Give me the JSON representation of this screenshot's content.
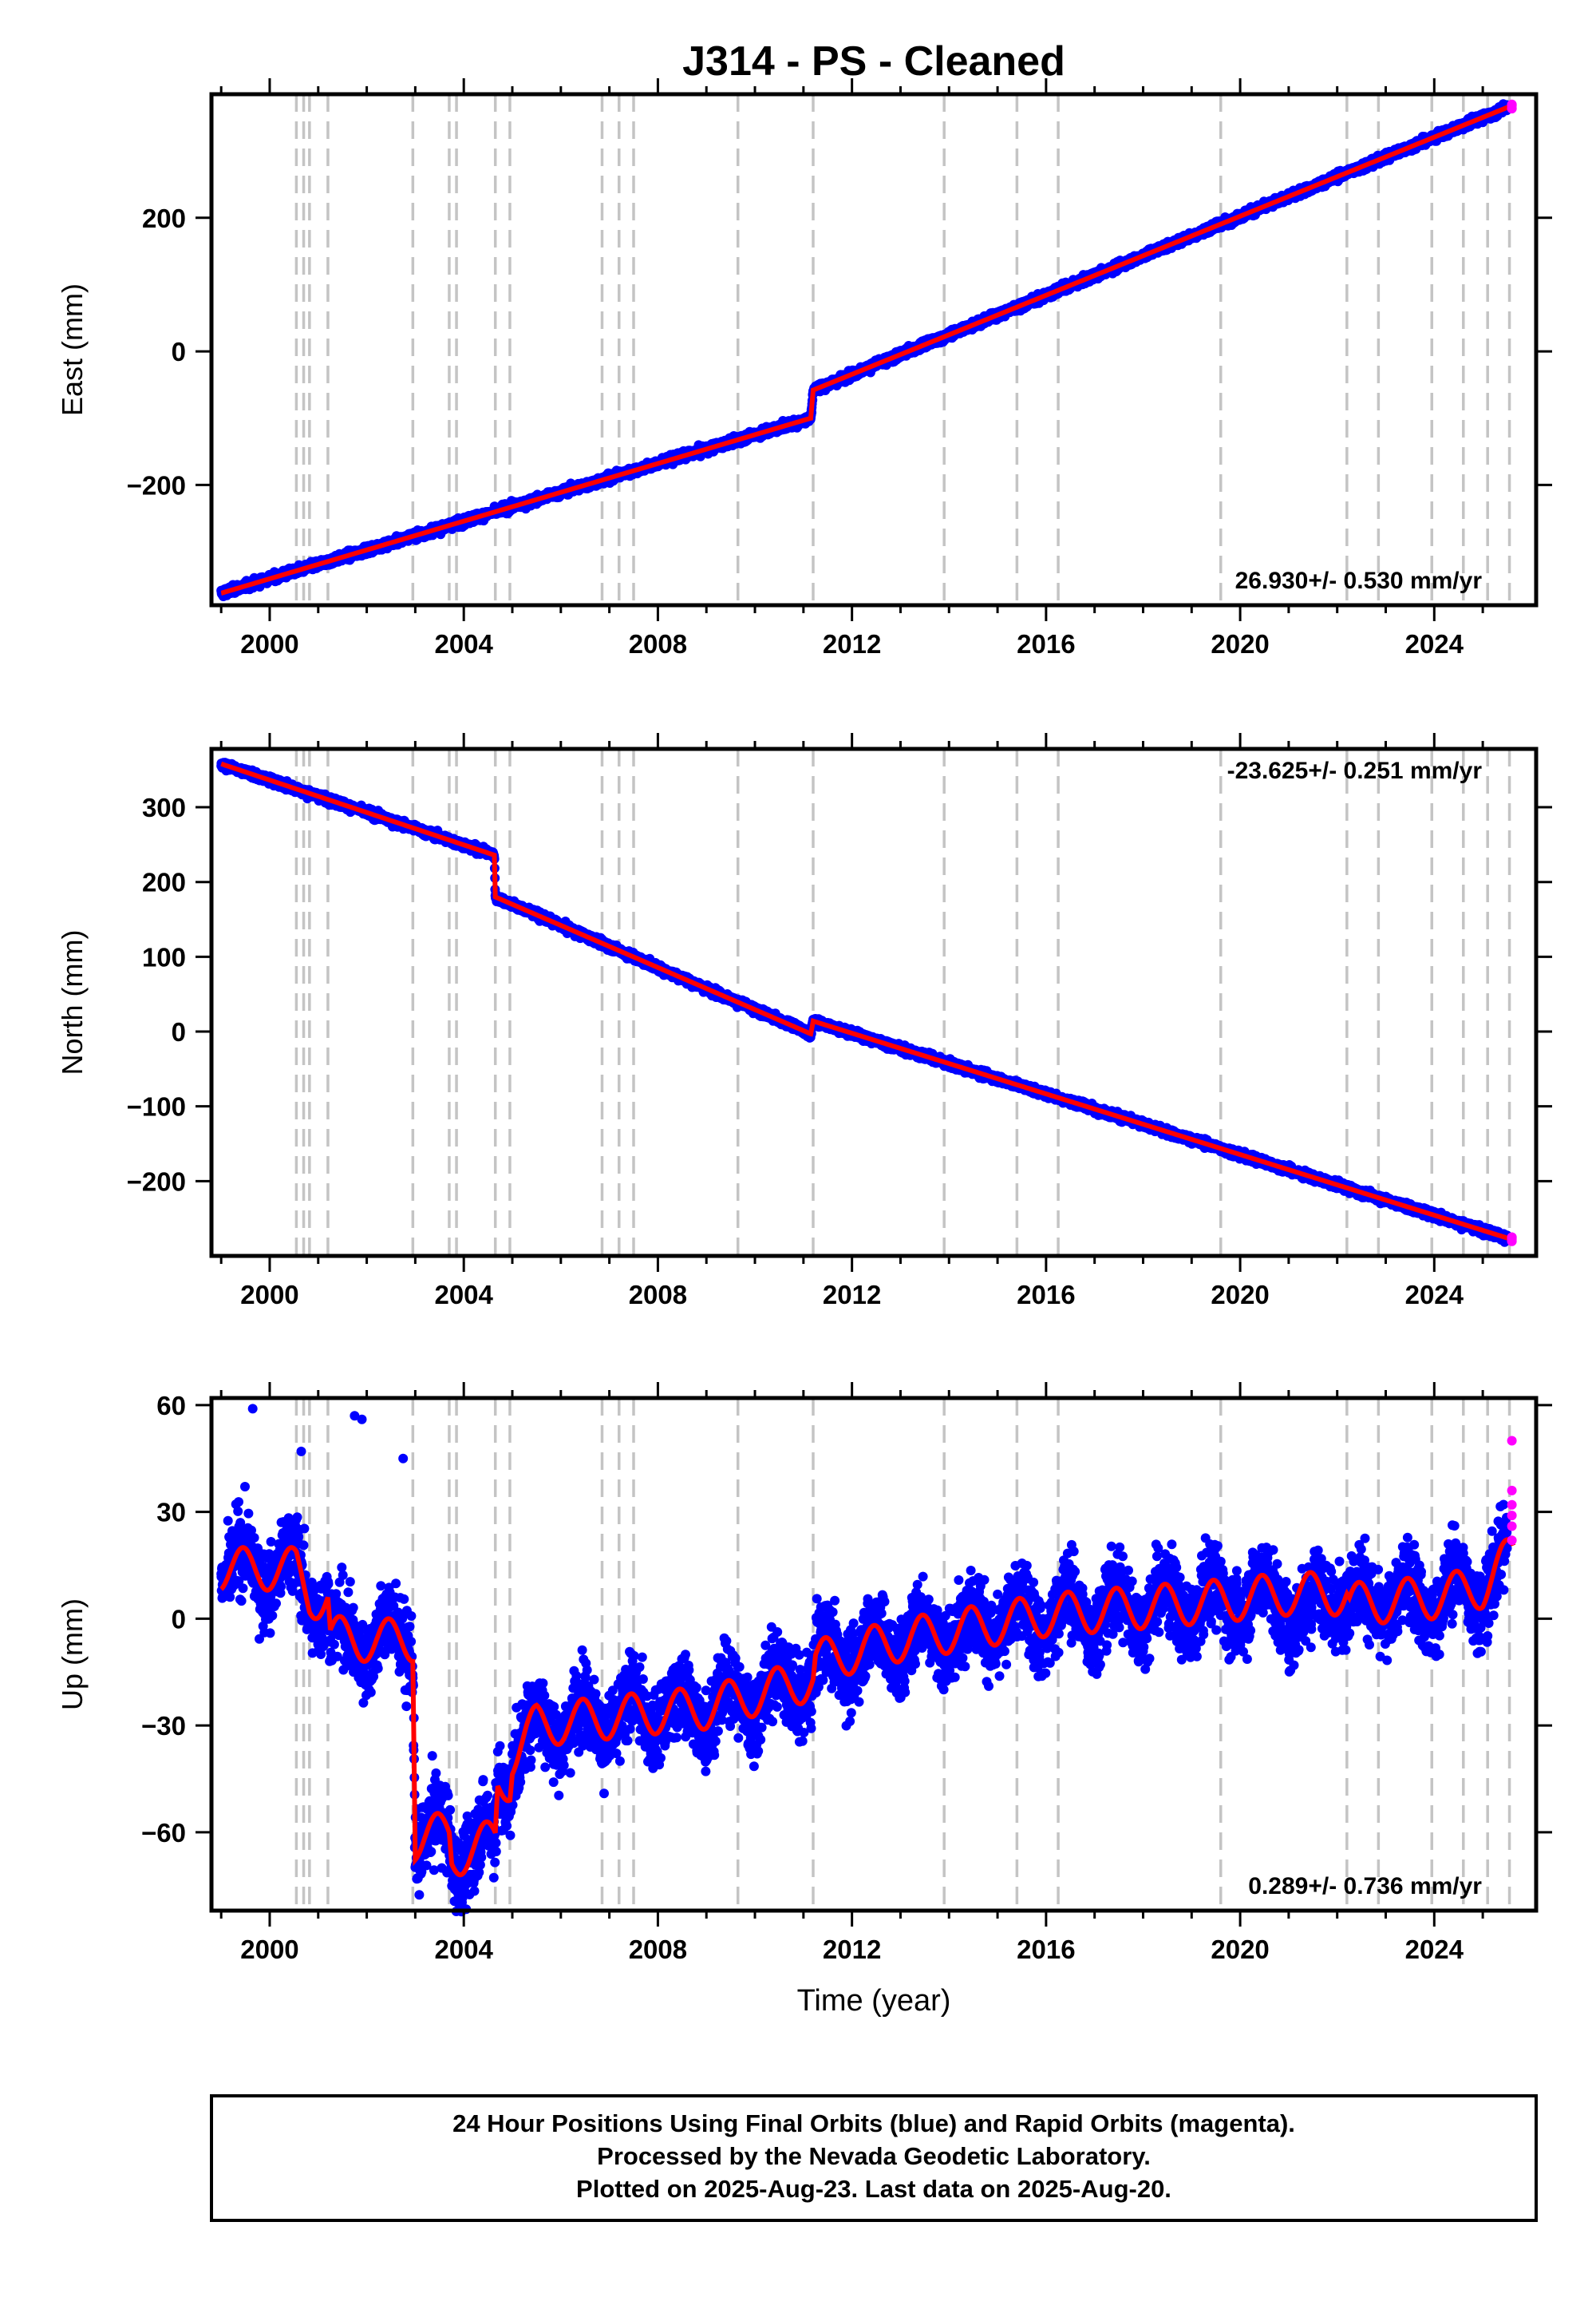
{
  "chart_data": [
    {
      "type": "scatter",
      "title": "J314  - PS - Cleaned",
      "ylabel": "East (mm)",
      "xlabel": "",
      "xlim": [
        1998.8,
        2026.1
      ],
      "ylim": [
        -380,
        385
      ],
      "x_ticks": [
        2000,
        2004,
        2008,
        2012,
        2016,
        2020,
        2024
      ],
      "y_ticks": [
        -200,
        0,
        200
      ],
      "y_tick_labels": [
        "−200",
        "0",
        "200"
      ],
      "rate_label": "26.930+/- 0.530 mm/yr",
      "rate_position": "bottom-right",
      "event_lines": [
        2000.55,
        2000.7,
        2000.82,
        2001.2,
        2002.95,
        2003.7,
        2003.85,
        2004.65,
        2004.95,
        2006.85,
        2007.2,
        2007.5,
        2009.65,
        2011.2,
        2013.9,
        2015.4,
        2016.25,
        2019.6,
        2022.2,
        2022.85,
        2023.95,
        2024.6,
        2025.1,
        2025.55
      ],
      "model_knots": [
        [
          1999.0,
          -362
        ],
        [
          2011.15,
          -100
        ],
        [
          2011.2,
          -58
        ],
        [
          2025.6,
          368
        ]
      ],
      "series": [
        {
          "name": "Final Orbits",
          "color": "#0000ff",
          "x_range": [
            1999.0,
            2025.5
          ],
          "noise": 3,
          "seasonal": 0
        },
        {
          "name": "Rapid Orbits",
          "color": "#ff00ff",
          "x_range": [
            2025.5,
            2025.63
          ],
          "noise": 3
        }
      ]
    },
    {
      "type": "scatter",
      "ylabel": "North (mm)",
      "xlabel": "",
      "xlim": [
        1998.8,
        2026.1
      ],
      "ylim": [
        -300,
        378
      ],
      "x_ticks": [
        2000,
        2004,
        2008,
        2012,
        2016,
        2020,
        2024
      ],
      "y_ticks": [
        -200,
        -100,
        0,
        100,
        200,
        300
      ],
      "y_tick_labels": [
        "−200",
        "−100",
        "0",
        "100",
        "200",
        "300"
      ],
      "rate_label": "-23.625+/- 0.251 mm/yr",
      "rate_position": "top-right",
      "event_lines": [
        2000.55,
        2000.7,
        2000.82,
        2001.2,
        2002.95,
        2003.7,
        2003.85,
        2004.65,
        2004.95,
        2006.85,
        2007.2,
        2007.5,
        2009.65,
        2011.2,
        2013.9,
        2015.4,
        2016.25,
        2019.6,
        2022.2,
        2022.85,
        2023.95,
        2024.6,
        2025.1,
        2025.55
      ],
      "model_knots": [
        [
          1999.0,
          358
        ],
        [
          2004.63,
          236
        ],
        [
          2004.65,
          180
        ],
        [
          2011.15,
          -3
        ],
        [
          2011.2,
          14
        ],
        [
          2025.6,
          -278
        ]
      ],
      "series": [
        {
          "name": "Final Orbits",
          "color": "#0000ff",
          "x_range": [
            1999.0,
            2025.5
          ],
          "noise": 2.5,
          "seasonal": 0
        },
        {
          "name": "Rapid Orbits",
          "color": "#ff00ff",
          "x_range": [
            2025.5,
            2025.63
          ],
          "noise": 3
        }
      ]
    },
    {
      "type": "scatter",
      "ylabel": "Up (mm)",
      "xlabel": "Time (year)",
      "xlim": [
        1998.8,
        2026.1
      ],
      "ylim": [
        -82,
        62
      ],
      "x_ticks": [
        2000,
        2004,
        2008,
        2012,
        2016,
        2020,
        2024
      ],
      "y_ticks": [
        -60,
        -30,
        0,
        30,
        60
      ],
      "y_tick_labels": [
        "−60",
        "−30",
        "0",
        "30",
        "60"
      ],
      "rate_label": "0.289+/- 0.736 mm/yr",
      "rate_position": "bottom-right",
      "event_lines": [
        2000.55,
        2000.7,
        2000.82,
        2001.2,
        2002.95,
        2003.7,
        2003.85,
        2004.65,
        2004.95,
        2006.85,
        2007.2,
        2007.5,
        2009.65,
        2011.2,
        2013.9,
        2015.4,
        2016.25,
        2019.6,
        2022.2,
        2022.85,
        2023.95,
        2024.6,
        2025.1,
        2025.55
      ],
      "model_knots": [
        [
          1999.0,
          14
        ],
        [
          2000.55,
          14
        ],
        [
          2000.82,
          6
        ],
        [
          2001.2,
          6
        ],
        [
          2001.25,
          -5
        ],
        [
          2001.8,
          -6
        ],
        [
          2002.95,
          -6
        ],
        [
          2003.0,
          -62
        ],
        [
          2003.7,
          -60
        ],
        [
          2003.75,
          -67
        ],
        [
          2004.65,
          -62
        ],
        [
          2004.7,
          -47
        ],
        [
          2004.95,
          -45
        ],
        [
          2005.0,
          -38
        ],
        [
          2005.5,
          -30
        ],
        [
          2007.5,
          -27
        ],
        [
          2009.0,
          -25
        ],
        [
          2011.2,
          -17
        ],
        [
          2011.25,
          -12
        ],
        [
          2013.0,
          -6
        ],
        [
          2016.0,
          1
        ],
        [
          2019.6,
          5
        ],
        [
          2021.0,
          7
        ],
        [
          2022.2,
          7
        ],
        [
          2022.25,
          4
        ],
        [
          2024.0,
          6
        ],
        [
          2025.0,
          9
        ],
        [
          2025.6,
          18
        ]
      ],
      "outliers": [
        [
          1999.65,
          59
        ],
        [
          2000.65,
          47
        ],
        [
          2001.75,
          57
        ],
        [
          2001.9,
          56
        ],
        [
          2002.75,
          45
        ]
      ],
      "series": [
        {
          "name": "Final Orbits",
          "color": "#0000ff",
          "x_range": [
            1999.0,
            2025.5
          ],
          "noise": 5.5,
          "seasonal": 6
        },
        {
          "name": "Rapid Orbits",
          "color": "#ff00ff",
          "x_range": [
            2025.5,
            2025.63
          ],
          "noise": 6,
          "values": [
            22,
            26,
            29,
            32,
            36,
            50
          ]
        }
      ]
    }
  ],
  "footer": {
    "line1": "24 Hour Positions Using Final Orbits (blue) and Rapid Orbits (magenta).",
    "line2": "Processed by the Nevada Geodetic Laboratory.",
    "line3": "Plotted on 2025-Aug-23. Last data on 2025-Aug-20."
  },
  "colors": {
    "final": "#0000ff",
    "rapid": "#ff00ff",
    "model": "#ff0000",
    "event_line": "#c4c4c4"
  }
}
